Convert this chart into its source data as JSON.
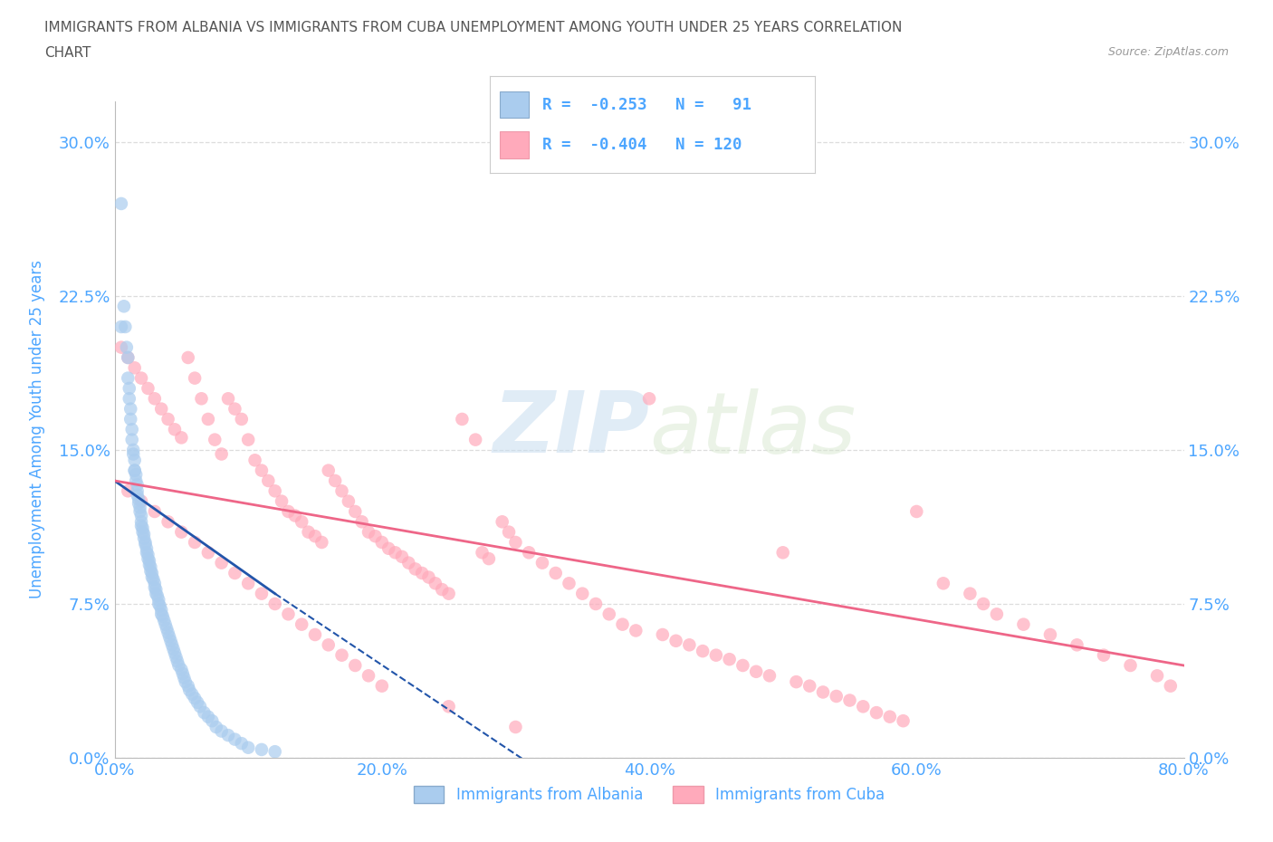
{
  "title_line1": "IMMIGRANTS FROM ALBANIA VS IMMIGRANTS FROM CUBA UNEMPLOYMENT AMONG YOUTH UNDER 25 YEARS CORRELATION",
  "title_line2": "CHART",
  "source_text": "Source: ZipAtlas.com",
  "ylabel": "Unemployment Among Youth under 25 years",
  "xlim": [
    0.0,
    0.8
  ],
  "ylim": [
    0.0,
    0.32
  ],
  "yticks": [
    0.0,
    0.075,
    0.15,
    0.225,
    0.3
  ],
  "ytick_labels": [
    "0.0%",
    "7.5%",
    "15.0%",
    "22.5%",
    "30.0%"
  ],
  "xticks": [
    0.0,
    0.2,
    0.4,
    0.6,
    0.8
  ],
  "xtick_labels": [
    "0.0%",
    "20.0%",
    "40.0%",
    "60.0%",
    "80.0%"
  ],
  "albania_color": "#aaccee",
  "cuba_color": "#ffaabb",
  "albania_line_color": "#2255aa",
  "cuba_line_color": "#ee6688",
  "albania_R": -0.253,
  "albania_N": 91,
  "cuba_R": -0.404,
  "cuba_N": 120,
  "watermark": "ZIPatlas",
  "legend_label_albania": "Immigrants from Albania",
  "legend_label_cuba": "Immigrants from Cuba",
  "background_color": "#ffffff",
  "grid_color": "#dddddd",
  "title_color": "#666666",
  "tick_color": "#4da6ff",
  "albania_scatter_x": [
    0.005,
    0.007,
    0.008,
    0.009,
    0.01,
    0.01,
    0.011,
    0.011,
    0.012,
    0.012,
    0.013,
    0.013,
    0.014,
    0.014,
    0.015,
    0.015,
    0.015,
    0.016,
    0.016,
    0.017,
    0.017,
    0.017,
    0.018,
    0.018,
    0.019,
    0.019,
    0.02,
    0.02,
    0.02,
    0.021,
    0.021,
    0.022,
    0.022,
    0.023,
    0.023,
    0.024,
    0.024,
    0.025,
    0.025,
    0.026,
    0.026,
    0.027,
    0.027,
    0.028,
    0.028,
    0.029,
    0.03,
    0.03,
    0.031,
    0.031,
    0.032,
    0.033,
    0.033,
    0.034,
    0.035,
    0.035,
    0.036,
    0.037,
    0.038,
    0.039,
    0.04,
    0.041,
    0.042,
    0.043,
    0.044,
    0.045,
    0.046,
    0.047,
    0.048,
    0.05,
    0.051,
    0.052,
    0.053,
    0.055,
    0.056,
    0.058,
    0.06,
    0.062,
    0.064,
    0.067,
    0.07,
    0.073,
    0.076,
    0.08,
    0.085,
    0.09,
    0.095,
    0.1,
    0.11,
    0.12,
    0.005
  ],
  "albania_scatter_y": [
    0.27,
    0.22,
    0.21,
    0.2,
    0.195,
    0.185,
    0.18,
    0.175,
    0.17,
    0.165,
    0.16,
    0.155,
    0.15,
    0.148,
    0.145,
    0.14,
    0.14,
    0.138,
    0.135,
    0.133,
    0.13,
    0.128,
    0.126,
    0.124,
    0.122,
    0.12,
    0.118,
    0.115,
    0.113,
    0.112,
    0.11,
    0.109,
    0.107,
    0.105,
    0.104,
    0.102,
    0.1,
    0.099,
    0.097,
    0.096,
    0.094,
    0.093,
    0.091,
    0.09,
    0.088,
    0.087,
    0.085,
    0.083,
    0.082,
    0.08,
    0.079,
    0.077,
    0.075,
    0.074,
    0.072,
    0.07,
    0.069,
    0.067,
    0.065,
    0.063,
    0.061,
    0.059,
    0.057,
    0.055,
    0.053,
    0.051,
    0.049,
    0.047,
    0.045,
    0.043,
    0.041,
    0.039,
    0.037,
    0.035,
    0.033,
    0.031,
    0.029,
    0.027,
    0.025,
    0.022,
    0.02,
    0.018,
    0.015,
    0.013,
    0.011,
    0.009,
    0.007,
    0.005,
    0.004,
    0.003,
    0.21
  ],
  "cuba_scatter_x": [
    0.005,
    0.01,
    0.015,
    0.02,
    0.025,
    0.03,
    0.035,
    0.04,
    0.045,
    0.05,
    0.055,
    0.06,
    0.065,
    0.07,
    0.075,
    0.08,
    0.085,
    0.09,
    0.095,
    0.1,
    0.105,
    0.11,
    0.115,
    0.12,
    0.125,
    0.13,
    0.135,
    0.14,
    0.145,
    0.15,
    0.155,
    0.16,
    0.165,
    0.17,
    0.175,
    0.18,
    0.185,
    0.19,
    0.195,
    0.2,
    0.205,
    0.21,
    0.215,
    0.22,
    0.225,
    0.23,
    0.235,
    0.24,
    0.245,
    0.25,
    0.26,
    0.27,
    0.275,
    0.28,
    0.29,
    0.295,
    0.3,
    0.31,
    0.32,
    0.33,
    0.34,
    0.35,
    0.36,
    0.37,
    0.38,
    0.39,
    0.4,
    0.41,
    0.42,
    0.43,
    0.44,
    0.45,
    0.46,
    0.47,
    0.48,
    0.49,
    0.5,
    0.51,
    0.52,
    0.53,
    0.54,
    0.55,
    0.56,
    0.57,
    0.58,
    0.59,
    0.6,
    0.62,
    0.64,
    0.65,
    0.66,
    0.68,
    0.7,
    0.72,
    0.74,
    0.76,
    0.78,
    0.79,
    0.01,
    0.02,
    0.03,
    0.04,
    0.05,
    0.06,
    0.07,
    0.08,
    0.09,
    0.1,
    0.11,
    0.12,
    0.13,
    0.14,
    0.15,
    0.16,
    0.17,
    0.18,
    0.19,
    0.2,
    0.25,
    0.3
  ],
  "cuba_scatter_y": [
    0.2,
    0.195,
    0.19,
    0.185,
    0.18,
    0.175,
    0.17,
    0.165,
    0.16,
    0.156,
    0.195,
    0.185,
    0.175,
    0.165,
    0.155,
    0.148,
    0.175,
    0.17,
    0.165,
    0.155,
    0.145,
    0.14,
    0.135,
    0.13,
    0.125,
    0.12,
    0.118,
    0.115,
    0.11,
    0.108,
    0.105,
    0.14,
    0.135,
    0.13,
    0.125,
    0.12,
    0.115,
    0.11,
    0.108,
    0.105,
    0.102,
    0.1,
    0.098,
    0.095,
    0.092,
    0.09,
    0.088,
    0.085,
    0.082,
    0.08,
    0.165,
    0.155,
    0.1,
    0.097,
    0.115,
    0.11,
    0.105,
    0.1,
    0.095,
    0.09,
    0.085,
    0.08,
    0.075,
    0.07,
    0.065,
    0.062,
    0.175,
    0.06,
    0.057,
    0.055,
    0.052,
    0.05,
    0.048,
    0.045,
    0.042,
    0.04,
    0.1,
    0.037,
    0.035,
    0.032,
    0.03,
    0.028,
    0.025,
    0.022,
    0.02,
    0.018,
    0.12,
    0.085,
    0.08,
    0.075,
    0.07,
    0.065,
    0.06,
    0.055,
    0.05,
    0.045,
    0.04,
    0.035,
    0.13,
    0.125,
    0.12,
    0.115,
    0.11,
    0.105,
    0.1,
    0.095,
    0.09,
    0.085,
    0.08,
    0.075,
    0.07,
    0.065,
    0.06,
    0.055,
    0.05,
    0.045,
    0.04,
    0.035,
    0.025,
    0.015
  ],
  "albania_trendline_x": [
    0.0,
    0.12
  ],
  "albania_trendline_y": [
    0.135,
    0.08
  ],
  "albania_dashline_x": [
    0.12,
    0.35
  ],
  "albania_dashline_y": [
    0.08,
    -0.02
  ],
  "cuba_trendline_x": [
    0.0,
    0.8
  ],
  "cuba_trendline_y": [
    0.135,
    0.045
  ]
}
